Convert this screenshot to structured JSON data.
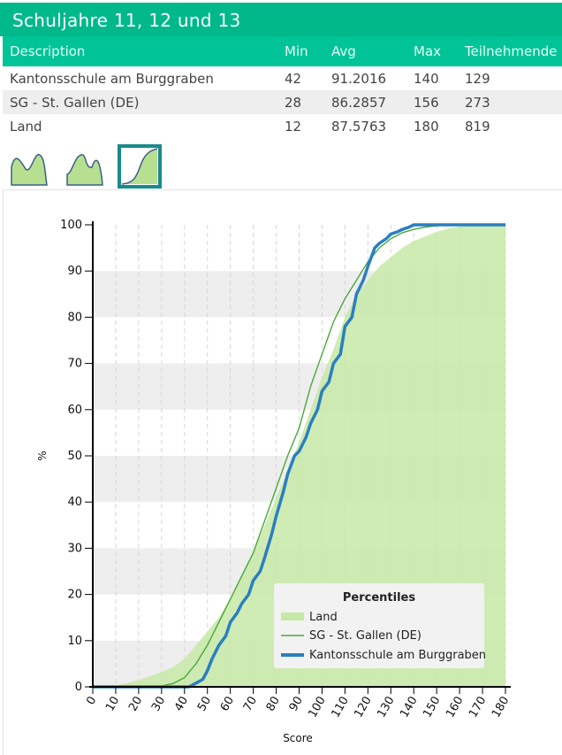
{
  "header": {
    "title": "Schuljahre 11, 12 und 13"
  },
  "table": {
    "columns": [
      "Description",
      "Min",
      "Avg",
      "Max",
      "Teilnehmende"
    ],
    "rows": [
      [
        "Kantonsschule am Burggraben",
        "42",
        "91.2016",
        "140",
        "129"
      ],
      [
        "SG - St. Gallen (DE)",
        "28",
        "86.2857",
        "156",
        "273"
      ],
      [
        "Land",
        "12",
        "87.5763",
        "180",
        "819"
      ]
    ]
  },
  "view_buttons": [
    {
      "name": "distribution-view-button",
      "icon": "density-curve-icon",
      "selected": false
    },
    {
      "name": "stacked-view-button",
      "icon": "filled-curve-icon",
      "selected": false
    },
    {
      "name": "cumulative-view-button",
      "icon": "cumulative-curve-icon",
      "selected": true
    }
  ],
  "colors": {
    "header_bg": "#00b88a",
    "table_head_bg": "#00c497",
    "land_fill": "#c6e9a6",
    "sg_line": "#4aa83a",
    "school_line": "#2a7fc0",
    "band": "#eeeeee"
  },
  "chart_data": {
    "type": "line",
    "xlabel": "Score",
    "ylabel": "%",
    "xlim": [
      0,
      180
    ],
    "ylim": [
      0,
      100
    ],
    "xticks": [
      "0",
      "10",
      "20",
      "30",
      "40",
      "50",
      "60",
      "70",
      "80",
      "90",
      "100",
      "110",
      "120",
      "130",
      "140",
      "150",
      "160",
      "170",
      "180"
    ],
    "yticks": [
      "0",
      "10",
      "20",
      "30",
      "40",
      "50",
      "60",
      "70",
      "80",
      "90",
      "100"
    ],
    "grid": "alternating horizontal bands, dashed vertical lines",
    "legend": {
      "title": "Percentiles",
      "position": "bottom-right"
    },
    "series": [
      {
        "name": "Land",
        "style": "area",
        "x": [
          0,
          10,
          15,
          20,
          25,
          30,
          35,
          40,
          45,
          50,
          55,
          60,
          65,
          70,
          75,
          80,
          85,
          90,
          95,
          100,
          105,
          110,
          115,
          120,
          125,
          130,
          135,
          140,
          145,
          150,
          155,
          160,
          165,
          170,
          180
        ],
        "y": [
          0,
          0.3,
          0.8,
          1.5,
          2.3,
          3.2,
          4.3,
          6,
          9,
          12,
          15,
          19,
          24,
          29,
          35,
          41,
          47,
          53,
          60,
          67,
          73,
          80,
          85,
          88,
          91,
          93,
          95,
          96.5,
          97.5,
          98.5,
          99.2,
          99.6,
          99.8,
          100,
          100
        ]
      },
      {
        "name": "SG - St. Gallen (DE)",
        "style": "thin-line",
        "x": [
          0,
          28,
          35,
          40,
          45,
          50,
          55,
          60,
          65,
          70,
          75,
          80,
          85,
          90,
          95,
          100,
          105,
          110,
          115,
          120,
          125,
          130,
          135,
          140,
          145,
          150,
          156,
          180
        ],
        "y": [
          0,
          0,
          0.7,
          2,
          5,
          9,
          14,
          19,
          24,
          29,
          36,
          43,
          50,
          56,
          65,
          72,
          79,
          84,
          88,
          92,
          95,
          97,
          98.3,
          99,
          99.5,
          99.8,
          100,
          100
        ]
      },
      {
        "name": "Kantonsschule am Burggraben",
        "style": "thick-line",
        "x": [
          0,
          42,
          45,
          48,
          50,
          52,
          55,
          58,
          60,
          63,
          65,
          68,
          70,
          73,
          75,
          78,
          80,
          83,
          85,
          88,
          90,
          93,
          95,
          98,
          100,
          103,
          105,
          108,
          110,
          113,
          115,
          118,
          120,
          123,
          125,
          128,
          130,
          133,
          135,
          138,
          140,
          180
        ],
        "y": [
          0,
          0,
          0.8,
          1.6,
          3.5,
          6,
          9,
          11,
          14,
          16,
          18,
          20,
          23,
          25,
          28,
          33,
          37,
          42,
          46,
          50,
          51,
          54,
          57,
          60,
          64,
          66,
          70,
          72,
          78,
          80,
          85,
          88,
          91,
          95,
          96,
          97,
          98,
          98.5,
          99,
          99.5,
          100,
          100
        ]
      }
    ]
  }
}
